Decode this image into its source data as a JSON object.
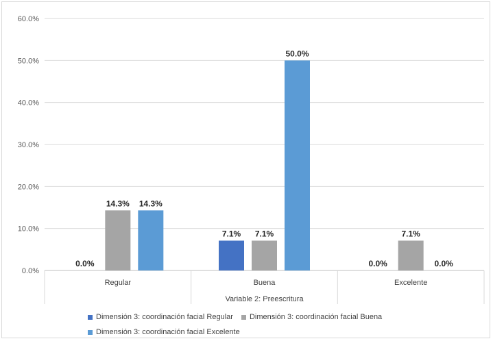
{
  "chart_data": {
    "type": "bar",
    "categories": [
      "Regular",
      "Buena",
      "Excelente"
    ],
    "series": [
      {
        "name": "Dimensión 3: coordinación facial  Regular",
        "values": [
          0.0,
          7.1,
          0.0
        ],
        "labels": [
          "0.0%",
          "7.1%",
          "0.0%"
        ],
        "color": "#4472c4"
      },
      {
        "name": "Dimensión 3: coordinación facial  Buena",
        "values": [
          14.3,
          7.1,
          7.1
        ],
        "labels": [
          "14.3%",
          "7.1%",
          "7.1%"
        ],
        "color": "#a5a5a5"
      },
      {
        "name": "Dimensión 3: coordinación facial  Excelente",
        "values": [
          14.3,
          50.0,
          0.0
        ],
        "labels": [
          "14.3%",
          "50.0%",
          "0.0%"
        ],
        "color": "#5b9bd5"
      }
    ],
    "xlabel": "Variable 2: Preescritura",
    "ylabel": "",
    "ylim": [
      0,
      60
    ],
    "yticks": [
      0,
      10,
      20,
      30,
      40,
      50,
      60
    ],
    "ytick_labels": [
      "0.0%",
      "10.0%",
      "20.0%",
      "30.0%",
      "40.0%",
      "50.0%",
      "60.0%"
    ],
    "grid": true,
    "legend_position": "bottom"
  }
}
